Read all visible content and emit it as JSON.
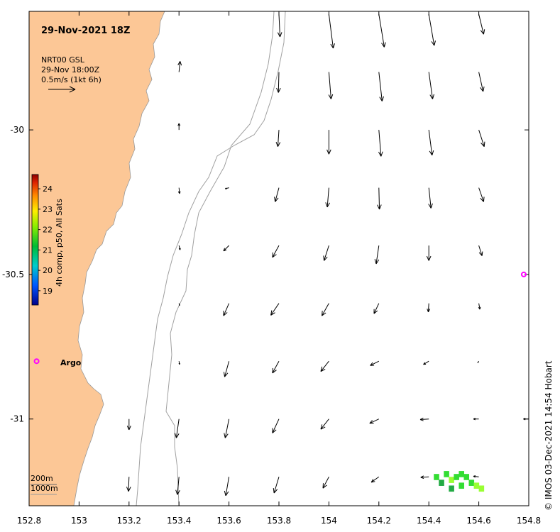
{
  "map": {
    "title": "29-Nov-2021 18Z",
    "product_label": "NRT00 GSL",
    "product_time": "29-Nov 18:00Z",
    "scale_label": "0.5m/s (1kt 6h)",
    "depth_labels": [
      "200m",
      "1000m"
    ],
    "watermark": "© IMOS 03-Dec-2021 14:54 Hobart",
    "colorbar_label": "4h comp, p50, All Sats",
    "colorbar_ticks": [
      "24",
      "23",
      "22",
      "21",
      "20",
      "19"
    ],
    "x_ticks": [
      "152.8",
      "153",
      "153.2",
      "153.4",
      "153.6",
      "153.8",
      "154",
      "154.2",
      "154.4",
      "154.6",
      "154.8"
    ],
    "y_ticks": [
      "-30",
      "-30.5",
      "-31"
    ],
    "argo_label": "Argo",
    "lon_range": [
      152.8,
      154.8
    ],
    "lat_range": [
      -29.59,
      -31.3
    ],
    "colors": {
      "land": "#fcc796",
      "land_edge": "#999999",
      "isobath": "#a0a0a0",
      "argo_marker": "#ff00ff",
      "sst_green": "#33dd33",
      "sst_lime": "#99ff33",
      "sst_dark": "#22aa44"
    },
    "argo_floats": [
      {
        "lon": 152.83,
        "lat": -30.8
      },
      {
        "lon": 154.78,
        "lat": -30.5
      }
    ],
    "vectors": [
      {
        "lon": 153.8,
        "lat": -29.6,
        "u": 0.02,
        "v": -0.42
      },
      {
        "lon": 154.0,
        "lat": -29.6,
        "u": 0.08,
        "v": -0.63
      },
      {
        "lon": 154.2,
        "lat": -29.6,
        "u": 0.1,
        "v": -0.61
      },
      {
        "lon": 154.4,
        "lat": -29.6,
        "u": 0.1,
        "v": -0.58
      },
      {
        "lon": 154.6,
        "lat": -29.6,
        "u": 0.09,
        "v": -0.37
      },
      {
        "lon": 153.4,
        "lat": -29.8,
        "u": 0.02,
        "v": 0.2
      },
      {
        "lon": 153.8,
        "lat": -29.8,
        "u": -0.01,
        "v": -0.38
      },
      {
        "lon": 154.0,
        "lat": -29.8,
        "u": 0.04,
        "v": -0.5
      },
      {
        "lon": 154.2,
        "lat": -29.8,
        "u": 0.06,
        "v": -0.54
      },
      {
        "lon": 154.4,
        "lat": -29.8,
        "u": 0.07,
        "v": -0.5
      },
      {
        "lon": 154.6,
        "lat": -29.8,
        "u": 0.08,
        "v": -0.36
      },
      {
        "lon": 153.4,
        "lat": -30.0,
        "u": 0.0,
        "v": 0.12
      },
      {
        "lon": 153.8,
        "lat": -30.0,
        "u": -0.02,
        "v": -0.31
      },
      {
        "lon": 154.0,
        "lat": -30.0,
        "u": 0.0,
        "v": -0.45
      },
      {
        "lon": 154.2,
        "lat": -30.0,
        "u": 0.04,
        "v": -0.49
      },
      {
        "lon": 154.4,
        "lat": -30.0,
        "u": 0.06,
        "v": -0.47
      },
      {
        "lon": 154.6,
        "lat": -30.0,
        "u": 0.1,
        "v": -0.31
      },
      {
        "lon": 153.4,
        "lat": -30.2,
        "u": 0.01,
        "v": -0.11
      },
      {
        "lon": 153.6,
        "lat": -30.2,
        "u": -0.07,
        "v": -0.02
      },
      {
        "lon": 153.8,
        "lat": -30.2,
        "u": -0.07,
        "v": -0.26
      },
      {
        "lon": 154.0,
        "lat": -30.2,
        "u": -0.03,
        "v": -0.36
      },
      {
        "lon": 154.2,
        "lat": -30.2,
        "u": 0.01,
        "v": -0.4
      },
      {
        "lon": 154.4,
        "lat": -30.2,
        "u": 0.04,
        "v": -0.38
      },
      {
        "lon": 154.6,
        "lat": -30.2,
        "u": 0.09,
        "v": -0.26
      },
      {
        "lon": 153.4,
        "lat": -30.4,
        "u": 0.02,
        "v": -0.08
      },
      {
        "lon": 153.6,
        "lat": -30.4,
        "u": -0.1,
        "v": -0.1
      },
      {
        "lon": 153.8,
        "lat": -30.4,
        "u": -0.12,
        "v": -0.22
      },
      {
        "lon": 154.0,
        "lat": -30.4,
        "u": -0.09,
        "v": -0.28
      },
      {
        "lon": 154.2,
        "lat": -30.4,
        "u": -0.05,
        "v": -0.34
      },
      {
        "lon": 154.4,
        "lat": -30.4,
        "u": 0.0,
        "v": -0.28
      },
      {
        "lon": 154.6,
        "lat": -30.4,
        "u": 0.06,
        "v": -0.19
      },
      {
        "lon": 153.4,
        "lat": -30.6,
        "u": 0.01,
        "v": -0.04
      },
      {
        "lon": 153.6,
        "lat": -30.6,
        "u": -0.1,
        "v": -0.23
      },
      {
        "lon": 153.8,
        "lat": -30.6,
        "u": -0.15,
        "v": -0.22
      },
      {
        "lon": 154.0,
        "lat": -30.6,
        "u": -0.13,
        "v": -0.23
      },
      {
        "lon": 154.2,
        "lat": -30.6,
        "u": -0.09,
        "v": -0.19
      },
      {
        "lon": 154.4,
        "lat": -30.6,
        "u": -0.01,
        "v": -0.16
      },
      {
        "lon": 154.6,
        "lat": -30.6,
        "u": 0.02,
        "v": -0.11
      },
      {
        "lon": 153.4,
        "lat": -30.8,
        "u": 0.01,
        "v": -0.06
      },
      {
        "lon": 153.6,
        "lat": -30.8,
        "u": -0.08,
        "v": -0.29
      },
      {
        "lon": 153.8,
        "lat": -30.8,
        "u": -0.12,
        "v": -0.22
      },
      {
        "lon": 154.0,
        "lat": -30.8,
        "u": -0.15,
        "v": -0.19
      },
      {
        "lon": 154.2,
        "lat": -30.8,
        "u": -0.16,
        "v": -0.08
      },
      {
        "lon": 154.4,
        "lat": -30.8,
        "u": -0.1,
        "v": -0.06
      },
      {
        "lon": 154.6,
        "lat": -30.8,
        "u": -0.02,
        "v": -0.03
      },
      {
        "lon": 153.2,
        "lat": -31.0,
        "u": 0.0,
        "v": -0.2
      },
      {
        "lon": 153.4,
        "lat": -31.0,
        "u": -0.05,
        "v": -0.35
      },
      {
        "lon": 153.6,
        "lat": -31.0,
        "u": -0.07,
        "v": -0.35
      },
      {
        "lon": 153.8,
        "lat": -31.0,
        "u": -0.12,
        "v": -0.26
      },
      {
        "lon": 154.0,
        "lat": -31.0,
        "u": -0.15,
        "v": -0.19
      },
      {
        "lon": 154.2,
        "lat": -31.0,
        "u": -0.17,
        "v": -0.08
      },
      {
        "lon": 154.4,
        "lat": -31.0,
        "u": -0.16,
        "v": -0.01
      },
      {
        "lon": 154.6,
        "lat": -31.0,
        "u": -0.1,
        "v": 0.0
      },
      {
        "lon": 154.8,
        "lat": -31.0,
        "u": -0.1,
        "v": 0.0
      },
      {
        "lon": 153.2,
        "lat": -31.2,
        "u": -0.01,
        "v": -0.27
      },
      {
        "lon": 153.4,
        "lat": -31.2,
        "u": -0.03,
        "v": -0.33
      },
      {
        "lon": 153.6,
        "lat": -31.2,
        "u": -0.06,
        "v": -0.35
      },
      {
        "lon": 153.8,
        "lat": -31.2,
        "u": -0.09,
        "v": -0.3
      },
      {
        "lon": 154.0,
        "lat": -31.2,
        "u": -0.11,
        "v": -0.21
      },
      {
        "lon": 154.2,
        "lat": -31.2,
        "u": -0.14,
        "v": -0.1
      },
      {
        "lon": 154.4,
        "lat": -31.2,
        "u": -0.15,
        "v": -0.01
      },
      {
        "lon": 154.6,
        "lat": -31.2,
        "u": -0.1,
        "v": 0.01
      }
    ],
    "sst_pixels": [
      {
        "lon": 154.43,
        "lat": -31.2,
        "t": 21.8
      },
      {
        "lon": 154.45,
        "lat": -31.22,
        "t": 21.5
      },
      {
        "lon": 154.47,
        "lat": -31.19,
        "t": 22.2
      },
      {
        "lon": 154.49,
        "lat": -31.21,
        "t": 22.3
      },
      {
        "lon": 154.51,
        "lat": -31.2,
        "t": 22.2
      },
      {
        "lon": 154.53,
        "lat": -31.19,
        "t": 22.0
      },
      {
        "lon": 154.55,
        "lat": -31.2,
        "t": 22.2
      },
      {
        "lon": 154.57,
        "lat": -31.22,
        "t": 22.1
      },
      {
        "lon": 154.59,
        "lat": -31.23,
        "t": 22.4
      },
      {
        "lon": 154.61,
        "lat": -31.24,
        "t": 22.5
      },
      {
        "lon": 154.49,
        "lat": -31.24,
        "t": 21.4
      },
      {
        "lon": 154.53,
        "lat": -31.23,
        "t": 21.9
      }
    ]
  }
}
